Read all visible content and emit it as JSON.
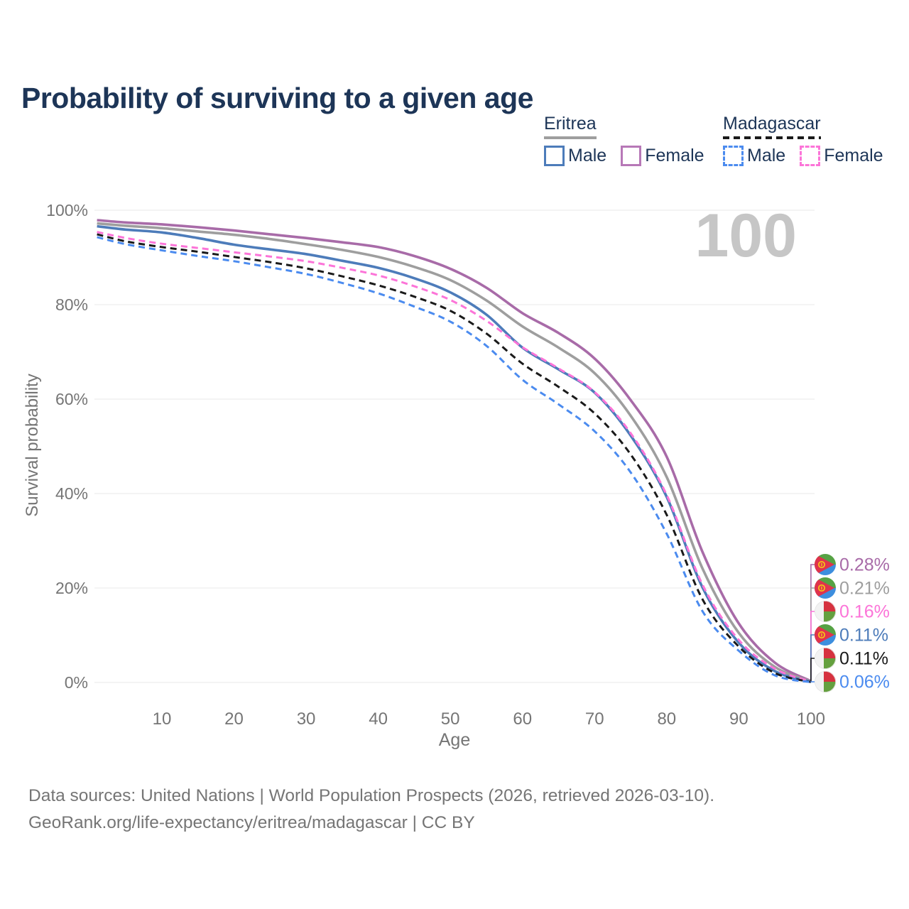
{
  "title": "Probability of surviving to a given age",
  "watermark_age": "100",
  "colors": {
    "title_text": "#1d3557",
    "axis_text": "#757575",
    "grid": "#e8e8e8",
    "watermark": "#c6c6c6"
  },
  "legend": {
    "groups": [
      {
        "label": "Eritrea",
        "underline": "solid",
        "underline_color": "#9e9e9e",
        "items": [
          {
            "label": "Male",
            "color": "#4d7cba",
            "dashed": false
          },
          {
            "label": "Female",
            "color": "#b778b7",
            "dashed": false
          }
        ]
      },
      {
        "label": "Madagascar",
        "underline": "dashed",
        "underline_color": "#1a1a1a",
        "items": [
          {
            "label": "Male",
            "color": "#4b8bef",
            "dashed": true
          },
          {
            "label": "Female",
            "color": "#fc74d8",
            "dashed": true
          }
        ]
      }
    ]
  },
  "chart_data": {
    "type": "line",
    "title": "Probability of surviving to a given age",
    "xlabel": "Age",
    "ylabel": "Survival probability",
    "xlim": [
      1,
      100
    ],
    "ylim": [
      0,
      100
    ],
    "grid": "horizontal",
    "x_ticks": [
      10,
      20,
      30,
      40,
      50,
      60,
      70,
      80,
      90,
      100
    ],
    "y_ticks": [
      {
        "value": 0,
        "label": "0%"
      },
      {
        "value": 20,
        "label": "20%"
      },
      {
        "value": 40,
        "label": "40%"
      },
      {
        "value": 60,
        "label": "60%"
      },
      {
        "value": 80,
        "label": "80%"
      },
      {
        "value": 100,
        "label": "100%"
      }
    ],
    "x": [
      1,
      5,
      10,
      15,
      20,
      25,
      30,
      35,
      40,
      45,
      50,
      55,
      60,
      65,
      70,
      75,
      80,
      85,
      90,
      95,
      100
    ],
    "series": [
      {
        "name": "Eritrea Female",
        "country": "Eritrea",
        "sex": "Female",
        "color": "#a86ba8",
        "dashed": false,
        "end_label": "0.28%",
        "values": [
          97.9,
          97.4,
          97.0,
          96.4,
          95.7,
          94.9,
          94.1,
          93.2,
          92.2,
          90.3,
          87.6,
          83.6,
          78.2,
          74.0,
          68.6,
          59.8,
          47.8,
          27.5,
          12.5,
          4.2,
          0.28
        ]
      },
      {
        "name": "Eritrea Both sexes",
        "country": "Eritrea",
        "sex": "Both sexes",
        "color": "#9e9e9e",
        "dashed": false,
        "end_label": "0.21%",
        "values": [
          97.2,
          96.7,
          96.2,
          95.5,
          94.8,
          93.9,
          92.8,
          91.6,
          90.1,
          88.0,
          85.2,
          80.9,
          75.4,
          70.9,
          65.5,
          56.5,
          43.5,
          24.0,
          10.5,
          3.3,
          0.21
        ]
      },
      {
        "name": "Eritrea Male",
        "country": "Eritrea",
        "sex": "Male",
        "color": "#4d7cba",
        "dashed": false,
        "end_label": "0.11%",
        "values": [
          96.6,
          95.9,
          95.3,
          94.1,
          92.7,
          91.7,
          90.7,
          89.3,
          87.8,
          85.6,
          82.6,
          77.9,
          70.9,
          66.3,
          61.4,
          52.3,
          39.3,
          20.0,
          8.4,
          2.4,
          0.11
        ]
      },
      {
        "name": "Madagascar Female",
        "country": "Madagascar",
        "sex": "Female",
        "color": "#fc74d8",
        "dashed": true,
        "end_label": "0.16%",
        "values": [
          95.4,
          94.1,
          92.9,
          92.0,
          91.1,
          90.2,
          89.2,
          87.8,
          86.2,
          83.9,
          81.0,
          76.6,
          71.0,
          66.5,
          61.5,
          52.8,
          39.7,
          20.6,
          9.0,
          2.9,
          0.16
        ]
      },
      {
        "name": "Madagascar Both sexes",
        "country": "Madagascar",
        "sex": "Both sexes",
        "color": "#1a1a1a",
        "dashed": true,
        "end_label": "0.11%",
        "values": [
          94.9,
          93.4,
          92.2,
          91.2,
          90.1,
          89.0,
          87.7,
          86.0,
          84.1,
          81.7,
          78.7,
          73.9,
          67.5,
          62.6,
          57.0,
          48.3,
          35.5,
          17.5,
          7.6,
          2.0,
          0.11
        ]
      },
      {
        "name": "Madagascar Male",
        "country": "Madagascar",
        "sex": "Male",
        "color": "#4b8bef",
        "dashed": true,
        "end_label": "0.06%",
        "values": [
          94.3,
          92.8,
          91.5,
          90.3,
          89.2,
          87.9,
          86.5,
          84.6,
          82.4,
          79.6,
          76.4,
          71.3,
          64.1,
          58.9,
          53.2,
          44.5,
          31.5,
          15.0,
          6.7,
          1.5,
          0.06
        ]
      }
    ],
    "end_label_order": [
      0,
      1,
      3,
      2,
      4,
      5
    ],
    "flags": {
      "eritrea": {
        "green": "#56a244",
        "blue": "#3d8ede",
        "red": "#e0334c",
        "gold": "#f5c518"
      },
      "madagascar": {
        "white": "#f2f2f2",
        "red": "#d6323f",
        "green": "#64a03e"
      }
    }
  },
  "footer": {
    "line1": "Data sources: United Nations | World Population Prospects (2026, retrieved 2026-03-10).",
    "line2": "GeoRank.org/life-expectancy/eritrea/madagascar | CC BY"
  }
}
